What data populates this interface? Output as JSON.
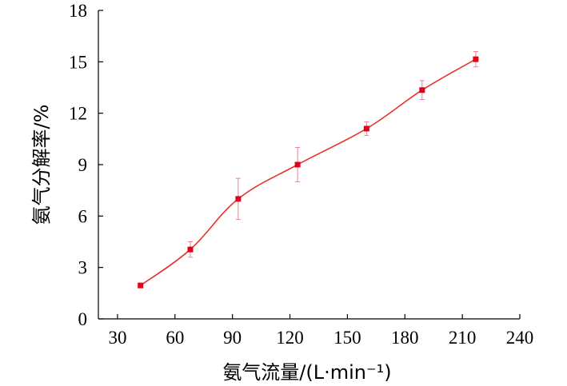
{
  "chart_data": {
    "type": "line",
    "xlabel": "氨气流量/(L·min⁻¹)",
    "ylabel": "氨气分解率/%",
    "xlim": [
      20,
      240
    ],
    "ylim": [
      0,
      18
    ],
    "xticks": [
      30,
      60,
      90,
      120,
      150,
      180,
      210,
      240
    ],
    "yticks": [
      0,
      3,
      6,
      9,
      12,
      15,
      18
    ],
    "grid": false,
    "legend": "none",
    "colors": {
      "line": "#e8332b",
      "marker": "#e3001b",
      "error_bar": "#ee7f95",
      "axis": "#000000"
    },
    "series": [
      {
        "marker": "square",
        "x": [
          42,
          68,
          93,
          124,
          160,
          189,
          217
        ],
        "y": [
          1.95,
          4.05,
          7.0,
          9.0,
          11.1,
          13.35,
          15.15
        ],
        "error": [
          0.0,
          0.45,
          1.2,
          1.0,
          0.4,
          0.55,
          0.45
        ]
      }
    ]
  }
}
